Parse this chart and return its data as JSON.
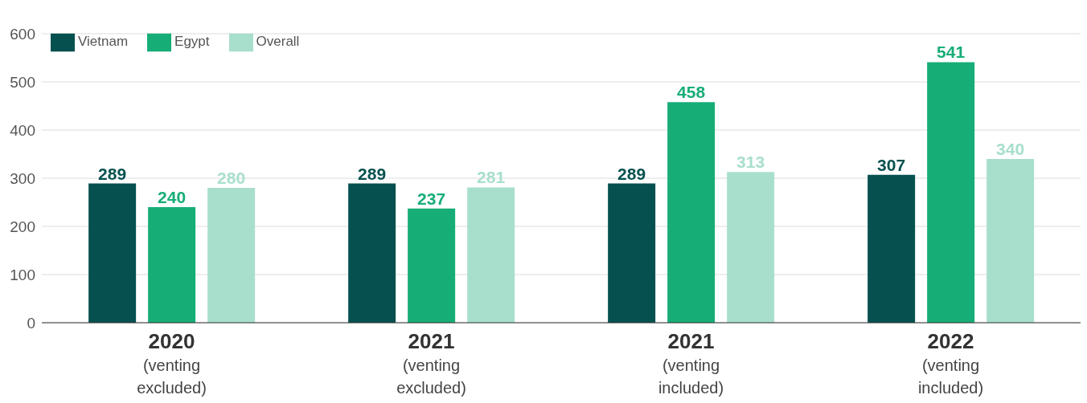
{
  "chart_data": {
    "type": "bar",
    "categories": [
      "2020\n(venting\nexcluded)",
      "2021\n(venting\nexcluded)",
      "2021\n(venting\nincluded)",
      "2022\n(venting\nincluded)"
    ],
    "series": [
      {
        "name": "Vietnam",
        "color": "#06514f",
        "values": [
          289,
          289,
          289,
          307
        ]
      },
      {
        "name": "Egypt",
        "color": "#17ad77",
        "values": [
          240,
          237,
          458,
          541
        ]
      },
      {
        "name": "Overall",
        "color": "#a8dfcc",
        "values": [
          280,
          281,
          313,
          340
        ]
      }
    ],
    "ylim": [
      0,
      600
    ],
    "yticks": [
      0,
      100,
      200,
      300,
      400,
      500,
      600
    ],
    "grid": "y",
    "legend": "top left",
    "data_labels": true
  }
}
